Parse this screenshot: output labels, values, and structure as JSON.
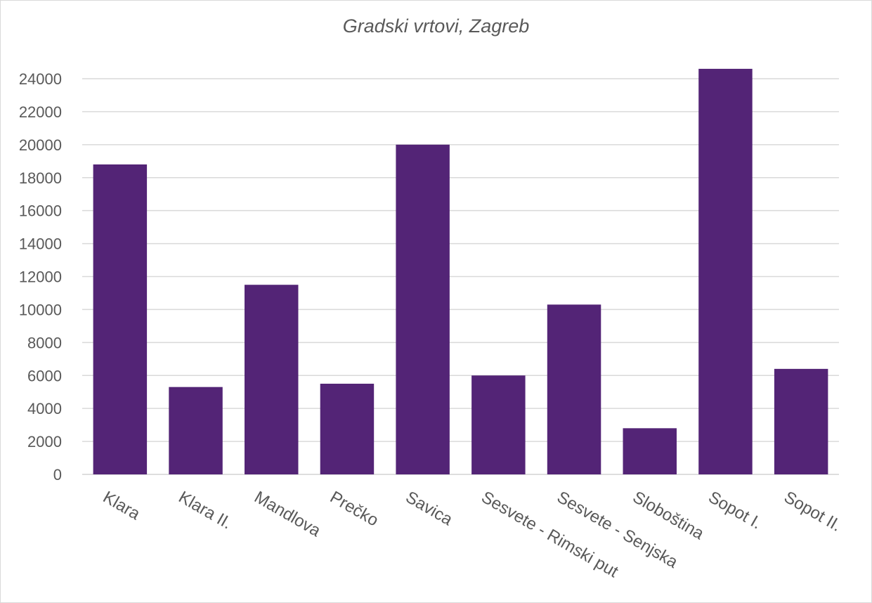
{
  "chart_data": {
    "type": "bar",
    "title": "Gradski vrtovi, Zagreb",
    "xlabel": "",
    "ylabel": "",
    "categories": [
      "Klara",
      "Klara II.",
      "Mandlova",
      "Prečko",
      "Savica",
      "Sesvete - Rimski put",
      "Sesvete - Senjska",
      "Sloboština",
      "Sopot I.",
      "Sopot II."
    ],
    "values": [
      18800,
      5300,
      11500,
      5500,
      20000,
      6000,
      10300,
      2800,
      24600,
      6400
    ],
    "ylim": [
      0,
      24000
    ],
    "yticks": [
      0,
      2000,
      4000,
      6000,
      8000,
      10000,
      12000,
      14000,
      16000,
      18000,
      20000,
      22000,
      24000
    ],
    "grid": true,
    "legend": "none",
    "bar_color": "#532476",
    "grid_color": "#d9d9d9",
    "text_color": "#595959"
  }
}
